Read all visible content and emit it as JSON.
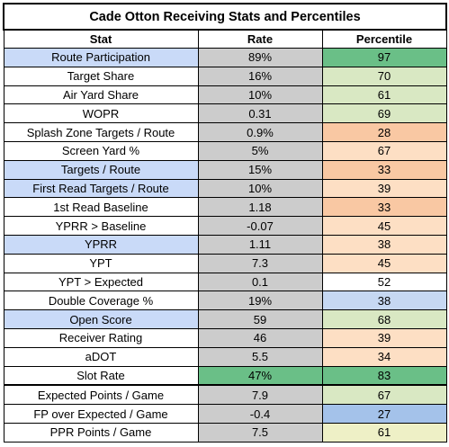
{
  "title": "Cade Otton Receiving Stats and Percentiles",
  "headers": {
    "stat": "Stat",
    "rate": "Rate",
    "percentile": "Percentile"
  },
  "colors": {
    "highlight_stat": "#c9daf8",
    "rate_cell": "#cccccc",
    "pct_dark_green": "#6abf87",
    "pct_light_green": "#d9e8c3",
    "pct_yellow_green": "#eef0c6",
    "pct_light_blue": "#c6d8f2",
    "pct_blue": "#a4c2ea",
    "pct_peach": "#fddfc4",
    "pct_orange": "#f9c8a3"
  },
  "rows": [
    {
      "stat": "Route Participation",
      "rate": "89%",
      "percentile": "97",
      "highlight": true,
      "pct_color": "#6abf87"
    },
    {
      "stat": "Target Share",
      "rate": "16%",
      "percentile": "70",
      "highlight": false,
      "pct_color": "#d9e8c3"
    },
    {
      "stat": "Air Yard Share",
      "rate": "10%",
      "percentile": "61",
      "highlight": false,
      "pct_color": "#d9e8c3"
    },
    {
      "stat": "WOPR",
      "rate": "0.31",
      "percentile": "69",
      "highlight": false,
      "pct_color": "#d9e8c3"
    },
    {
      "stat": "Splash Zone Targets / Route",
      "rate": "0.9%",
      "percentile": "28",
      "highlight": false,
      "pct_color": "#f9c8a3"
    },
    {
      "stat": "Screen Yard %",
      "rate": "5%",
      "percentile": "67",
      "highlight": false,
      "pct_color": "#fddfc4"
    },
    {
      "stat": "Targets / Route",
      "rate": "15%",
      "percentile": "33",
      "highlight": true,
      "pct_color": "#f9c8a3"
    },
    {
      "stat": "First Read Targets / Route",
      "rate": "10%",
      "percentile": "39",
      "highlight": true,
      "pct_color": "#fddfc4"
    },
    {
      "stat": "1st Read Baseline",
      "rate": "1.18",
      "percentile": "33",
      "highlight": false,
      "pct_color": "#f9c8a3"
    },
    {
      "stat": "YPRR > Baseline",
      "rate": "-0.07",
      "percentile": "45",
      "highlight": false,
      "pct_color": "#fddfc4"
    },
    {
      "stat": "YPRR",
      "rate": "1.11",
      "percentile": "38",
      "highlight": true,
      "pct_color": "#fddfc4"
    },
    {
      "stat": "YPT",
      "rate": "7.3",
      "percentile": "45",
      "highlight": false,
      "pct_color": "#fddfc4"
    },
    {
      "stat": "YPT > Expected",
      "rate": "0.1",
      "percentile": "52",
      "highlight": false,
      "pct_color": "#ffffff"
    },
    {
      "stat": "Double Coverage %",
      "rate": "19%",
      "percentile": "38",
      "highlight": false,
      "pct_color": "#c6d8f2"
    },
    {
      "stat": "Open Score",
      "rate": "59",
      "percentile": "68",
      "highlight": true,
      "pct_color": "#d9e8c3"
    },
    {
      "stat": "Receiver Rating",
      "rate": "46",
      "percentile": "39",
      "highlight": false,
      "pct_color": "#fddfc4"
    },
    {
      "stat": "aDOT",
      "rate": "5.5",
      "percentile": "34",
      "highlight": false,
      "pct_color": "#fddfc4"
    },
    {
      "stat": "Slot Rate",
      "rate": "47%",
      "percentile": "83",
      "highlight": false,
      "pct_color": "#6abf87",
      "rate_color": "#6abf87"
    },
    {
      "stat": "Expected Points / Game",
      "rate": "7.9",
      "percentile": "67",
      "highlight": false,
      "pct_color": "#d9e8c3",
      "separator": true
    },
    {
      "stat": "FP over Expected / Game",
      "rate": "-0.4",
      "percentile": "27",
      "highlight": false,
      "pct_color": "#a4c2ea"
    },
    {
      "stat": "PPR Points / Game",
      "rate": "7.5",
      "percentile": "61",
      "highlight": false,
      "pct_color": "#eef0c6"
    }
  ]
}
